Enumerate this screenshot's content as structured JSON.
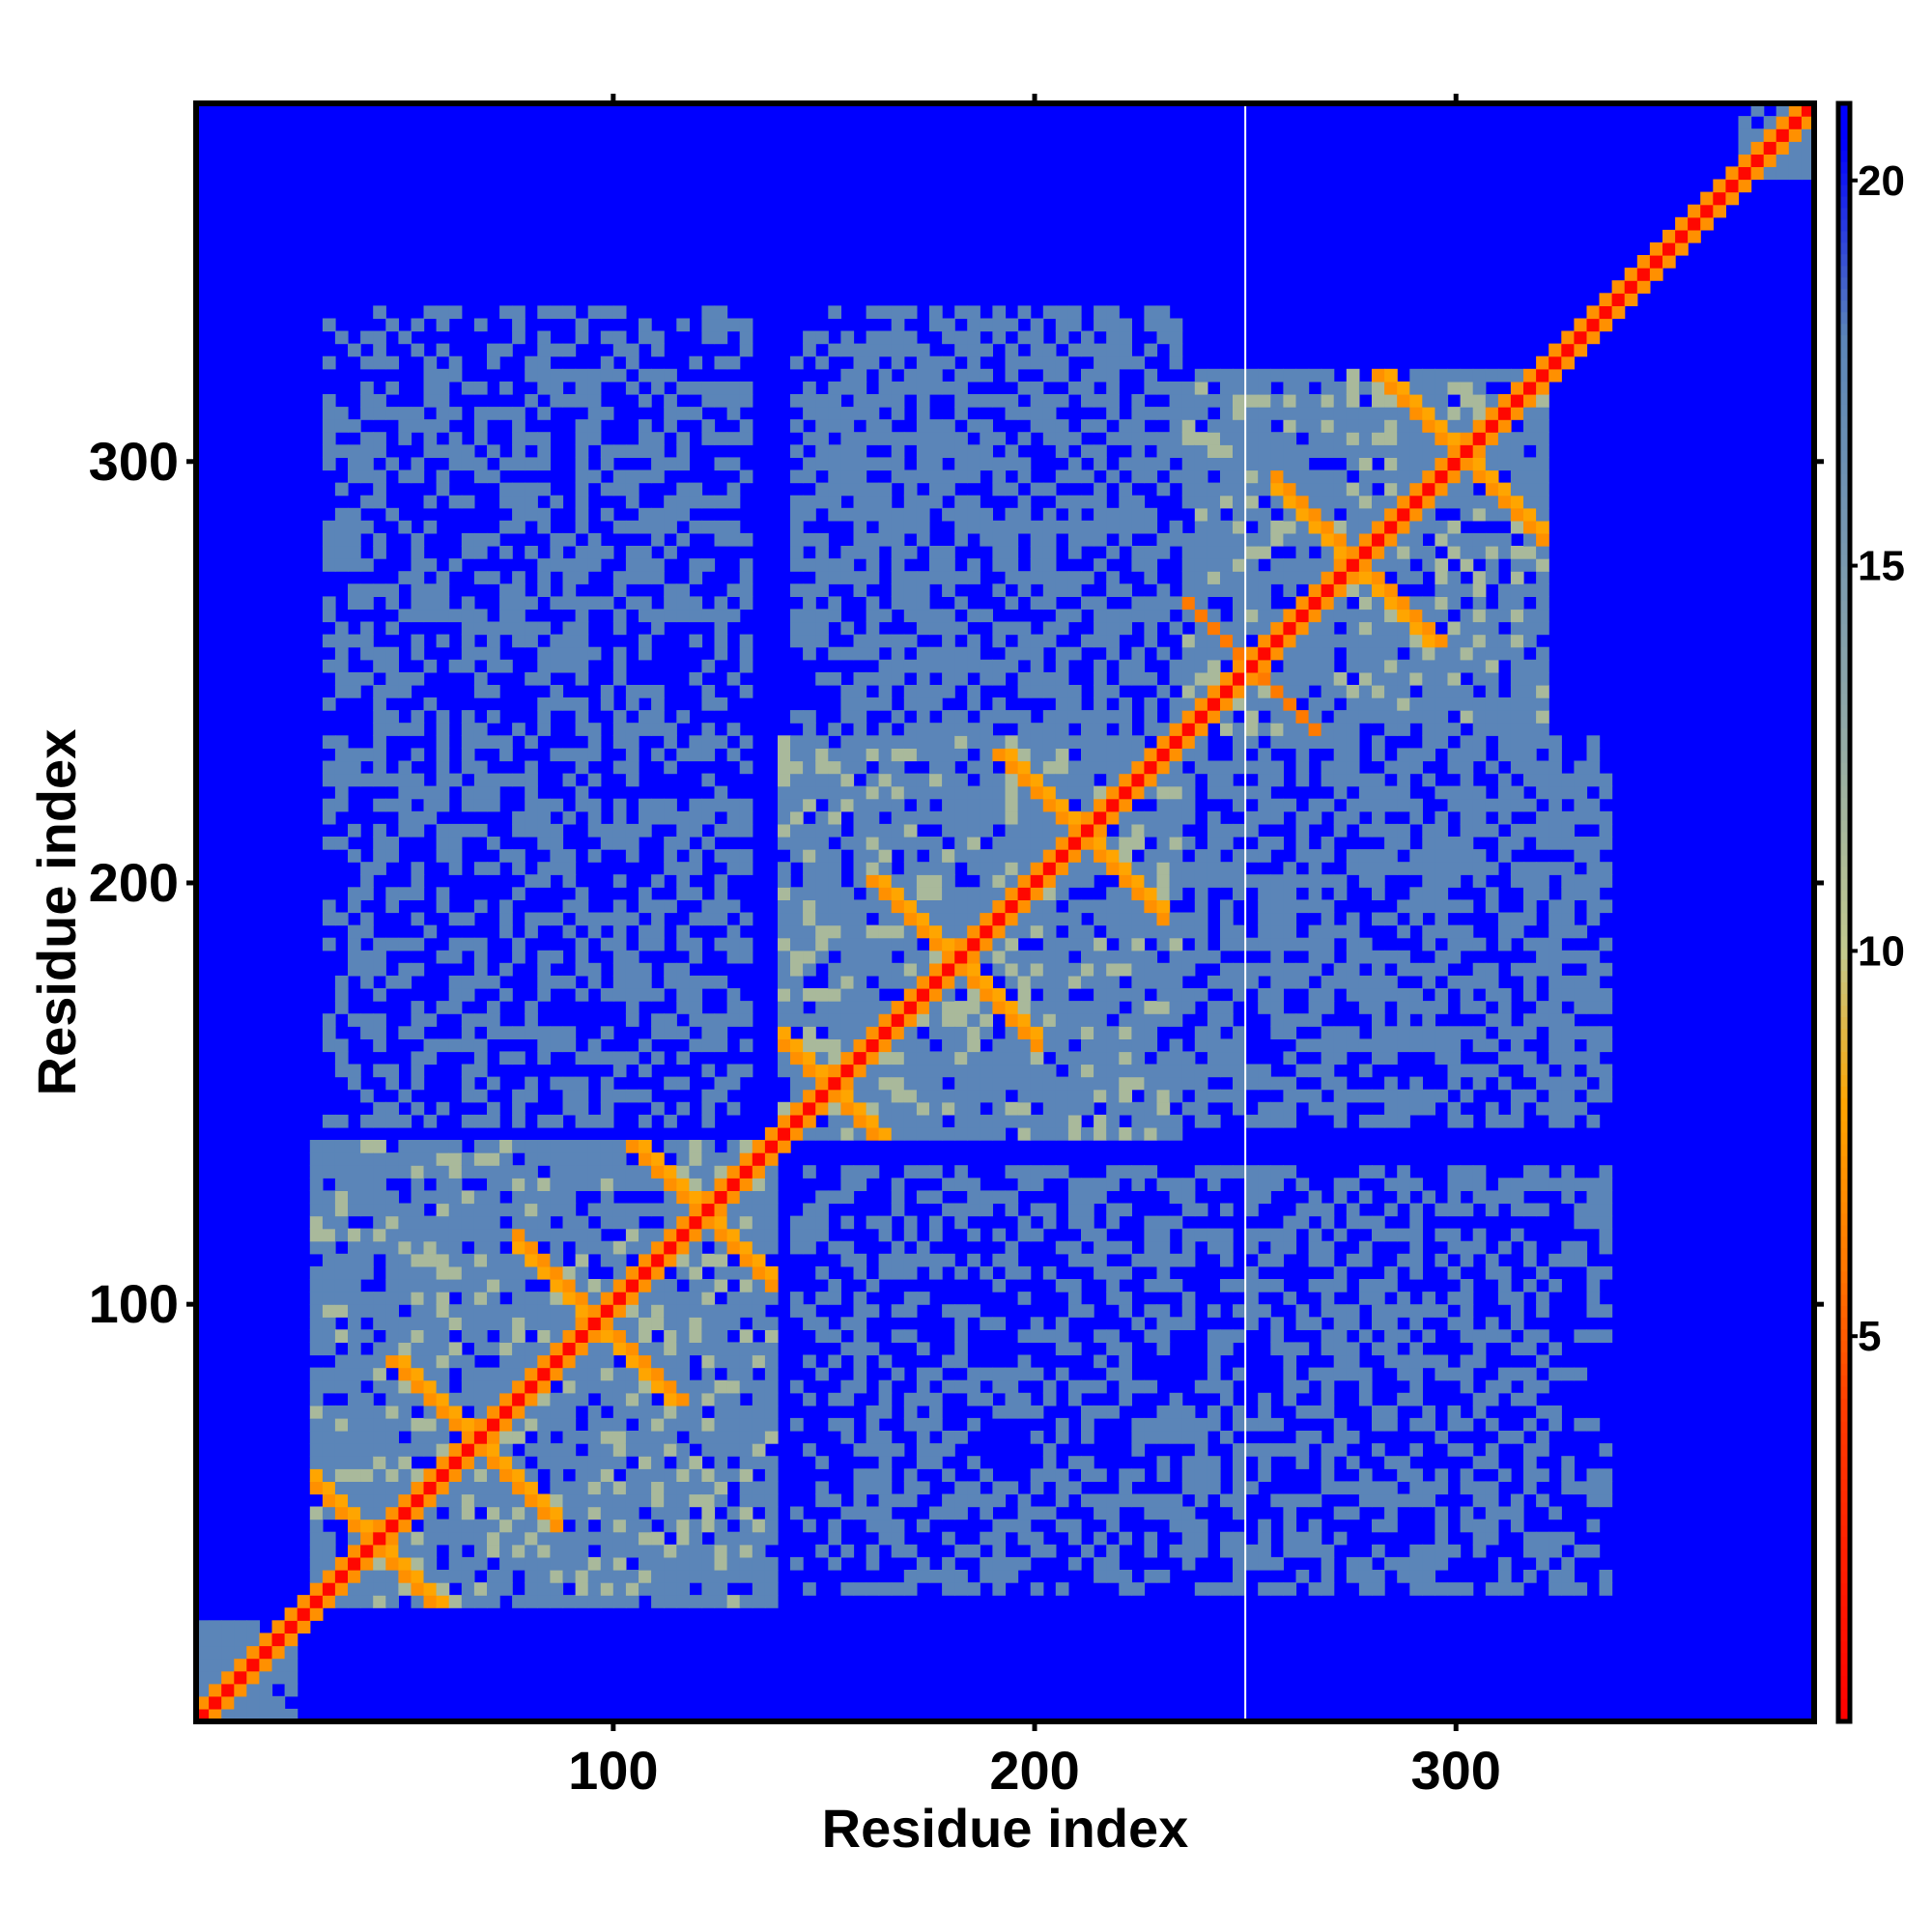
{
  "chart_data": {
    "type": "heatmap",
    "title": "",
    "xlabel": "Residue index",
    "ylabel": "Residue index",
    "xlim": [
      1,
      385
    ],
    "ylim": [
      1,
      385
    ],
    "x_ticks": [
      100,
      200,
      300
    ],
    "y_ticks": [
      100,
      200,
      300
    ],
    "colorbar": {
      "range": [
        0,
        21
      ],
      "ticks": [
        5,
        10,
        15,
        20
      ],
      "stops": [
        {
          "value": 0,
          "color": "#ff0000"
        },
        {
          "value": 4,
          "color": "#ff3b00"
        },
        {
          "value": 6,
          "color": "#ff7a00"
        },
        {
          "value": 8,
          "color": "#ffa500"
        },
        {
          "value": 10,
          "color": "#c2c98e"
        },
        {
          "value": 13,
          "color": "#8fa8a8"
        },
        {
          "value": 18,
          "color": "#5b85b8"
        },
        {
          "value": 20.5,
          "color": "#0000ff"
        }
      ]
    },
    "background_value": 21,
    "annotations": [
      {
        "type": "vertical-line",
        "x": 250,
        "color": "#ffffff"
      }
    ],
    "domains": [
      {
        "start": 28,
        "end": 137,
        "crossings": [
          42,
          66,
          95,
          120
        ]
      },
      {
        "start": 137,
        "end": 232,
        "crossings": [
          150,
          180,
          210
        ]
      },
      {
        "start": 222,
        "end": 320,
        "crossings": [
          250,
          275,
          300
        ]
      }
    ]
  }
}
